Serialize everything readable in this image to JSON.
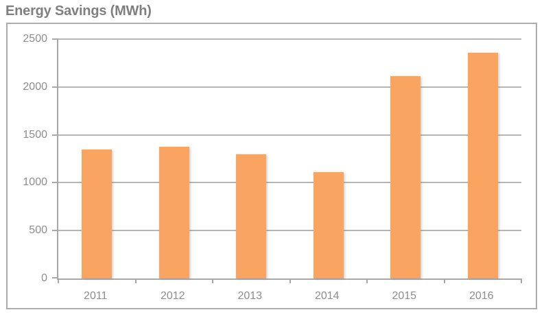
{
  "chart_data": {
    "type": "bar",
    "title": "Energy Savings (MWh)",
    "categories": [
      "2011",
      "2012",
      "2013",
      "2014",
      "2015",
      "2016"
    ],
    "values": [
      1350,
      1375,
      1300,
      1110,
      2115,
      2360
    ],
    "xlabel": "",
    "ylabel": "",
    "ylim": [
      0,
      2500
    ],
    "ytick_step": 500,
    "ytick_labels": [
      "0",
      "500",
      "1000",
      "1500",
      "2000",
      "2500"
    ],
    "grid": true,
    "legend_position": "none",
    "colors": {
      "bar": "#FAA461",
      "gridline": "#B5B5B5",
      "axis": "#A8A8A8",
      "tick_label": "#8C8C8C",
      "title": "#7F7F7F",
      "frame_border": "#ADADAD"
    }
  }
}
